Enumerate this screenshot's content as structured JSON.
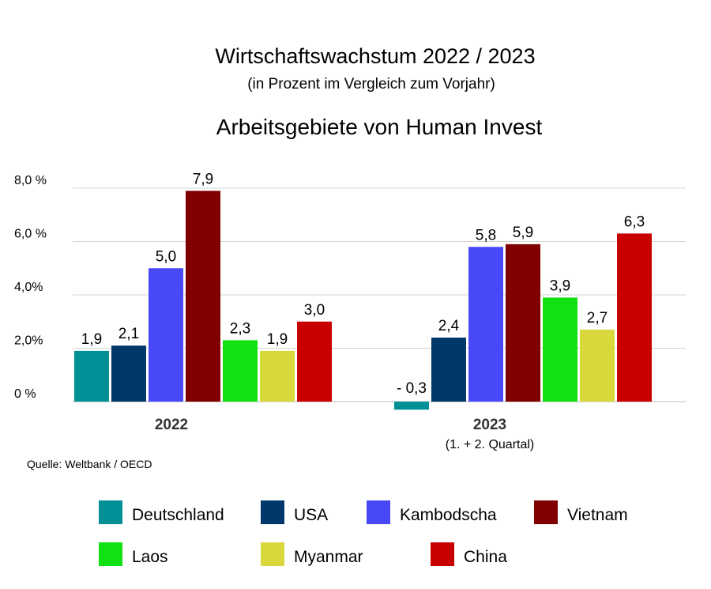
{
  "header": {
    "title": "Wirtschaftswachstum 2022 / 2023",
    "subtitle": "(in Prozent im Vergleich zum Vorjahr)",
    "heading": "Arbeitsgebiete von Human Invest"
  },
  "source": "Quelle: Weltbank / OECD",
  "chart_data": {
    "type": "bar",
    "title": "Wirtschaftswachstum 2022 / 2023",
    "subtitle": "(in Prozent im Vergleich zum Vorjahr)",
    "categories": [
      "2022",
      "2023"
    ],
    "category_notes": [
      "",
      "(1. + 2. Quartal)"
    ],
    "ylim": [
      0,
      8
    ],
    "yticks": [
      {
        "value": 0,
        "label": "0 %"
      },
      {
        "value": 2,
        "label": "2,0%"
      },
      {
        "value": 4,
        "label": "4,0%"
      },
      {
        "value": 6,
        "label": "6,0 %"
      },
      {
        "value": 8,
        "label": "8,0 %"
      }
    ],
    "grid": true,
    "legend_position": "bottom",
    "series": [
      {
        "name": "Deutschland",
        "color": "#009095",
        "values": [
          1.9,
          -0.3
        ],
        "labels": [
          "1,9",
          "- 0,3"
        ]
      },
      {
        "name": "USA",
        "color": "#00386B",
        "values": [
          2.1,
          2.4
        ],
        "labels": [
          "2,1",
          "2,4"
        ]
      },
      {
        "name": "Kambodscha",
        "color": "#4848F7",
        "values": [
          5.0,
          5.8
        ],
        "labels": [
          "5,0",
          "5,8"
        ]
      },
      {
        "name": "Vietnam",
        "color": "#800000",
        "values": [
          7.9,
          5.9
        ],
        "labels": [
          "7,9",
          "5,9"
        ]
      },
      {
        "name": "Laos",
        "color": "#11E011",
        "values": [
          2.3,
          3.9
        ],
        "labels": [
          "2,3",
          "3,9"
        ]
      },
      {
        "name": "Myanmar",
        "color": "#D8D83C",
        "values": [
          1.9,
          2.7
        ],
        "labels": [
          "1,9",
          "2,7"
        ]
      },
      {
        "name": "China",
        "color": "#C80000",
        "values": [
          3.0,
          6.3
        ],
        "labels": [
          "3,0",
          "6,3"
        ]
      }
    ]
  }
}
